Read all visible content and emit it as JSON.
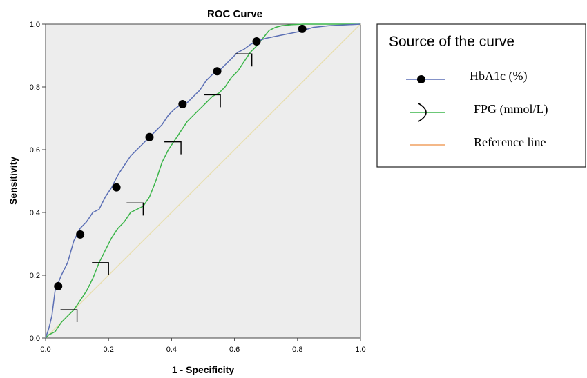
{
  "chart_data": {
    "type": "line",
    "title": "ROC Curve",
    "xlabel": "1 - Specificity",
    "ylabel": "Sensitivity",
    "xlim": [
      0,
      1
    ],
    "ylim": [
      0,
      1
    ],
    "x_ticks": [
      "0.0",
      "0.2",
      "0.4",
      "0.6",
      "0.8",
      "1.0"
    ],
    "y_ticks": [
      "0.0",
      "0.2",
      "0.4",
      "0.6",
      "0.8",
      "1.0"
    ],
    "grid": false,
    "plot_background": "#ededed",
    "legend": {
      "title": "Source of the curve",
      "placement": "right"
    },
    "series": [
      {
        "name": "HbA1c (%)",
        "color": "#5b6fb5",
        "marker": "filled-circle",
        "x": [
          0,
          0.01,
          0.02,
          0.03,
          0.05,
          0.07,
          0.09,
          0.11,
          0.13,
          0.15,
          0.17,
          0.19,
          0.21,
          0.23,
          0.25,
          0.27,
          0.29,
          0.31,
          0.33,
          0.35,
          0.37,
          0.39,
          0.41,
          0.43,
          0.45,
          0.47,
          0.49,
          0.51,
          0.53,
          0.55,
          0.57,
          0.59,
          0.61,
          0.63,
          0.65,
          0.67,
          0.7,
          0.75,
          0.8,
          0.85,
          0.9,
          1.0
        ],
        "y": [
          0,
          0.03,
          0.07,
          0.15,
          0.2,
          0.24,
          0.31,
          0.35,
          0.37,
          0.4,
          0.41,
          0.45,
          0.48,
          0.52,
          0.55,
          0.58,
          0.6,
          0.62,
          0.64,
          0.66,
          0.68,
          0.71,
          0.73,
          0.745,
          0.75,
          0.77,
          0.79,
          0.82,
          0.84,
          0.85,
          0.87,
          0.89,
          0.91,
          0.92,
          0.935,
          0.945,
          0.955,
          0.965,
          0.975,
          0.99,
          0.995,
          1.0
        ],
        "marker_x": [
          0.04,
          0.11,
          0.225,
          0.33,
          0.435,
          0.545,
          0.67,
          0.815
        ],
        "marker_y": [
          0.165,
          0.33,
          0.48,
          0.64,
          0.745,
          0.85,
          0.945,
          0.985
        ]
      },
      {
        "name": "FPG (mmol/L)",
        "color": "#3cb54a",
        "marker": "arc",
        "x": [
          0,
          0.01,
          0.03,
          0.05,
          0.07,
          0.09,
          0.11,
          0.13,
          0.15,
          0.17,
          0.19,
          0.21,
          0.23,
          0.25,
          0.27,
          0.29,
          0.31,
          0.33,
          0.35,
          0.37,
          0.39,
          0.41,
          0.43,
          0.45,
          0.47,
          0.49,
          0.51,
          0.53,
          0.55,
          0.57,
          0.59,
          0.61,
          0.63,
          0.65,
          0.67,
          0.69,
          0.71,
          0.73,
          0.75,
          0.78,
          0.82,
          0.88,
          0.94,
          1.0
        ],
        "y": [
          0,
          0.01,
          0.02,
          0.05,
          0.07,
          0.09,
          0.12,
          0.15,
          0.19,
          0.24,
          0.28,
          0.32,
          0.35,
          0.37,
          0.4,
          0.41,
          0.42,
          0.45,
          0.5,
          0.56,
          0.6,
          0.63,
          0.66,
          0.69,
          0.71,
          0.73,
          0.75,
          0.77,
          0.78,
          0.8,
          0.83,
          0.85,
          0.88,
          0.91,
          0.93,
          0.955,
          0.98,
          0.99,
          0.995,
          0.998,
          1.0,
          1.0,
          1.0,
          1.0
        ],
        "marker_x": [
          0.1,
          0.2,
          0.31,
          0.43,
          0.555,
          0.655
        ],
        "marker_y": [
          0.09,
          0.24,
          0.43,
          0.625,
          0.775,
          0.905
        ]
      },
      {
        "name": "Reference line",
        "color": "#e8dfb0",
        "legend_color": "#f0a060",
        "marker": "none",
        "x": [
          0,
          1
        ],
        "y": [
          0,
          1
        ]
      }
    ]
  }
}
